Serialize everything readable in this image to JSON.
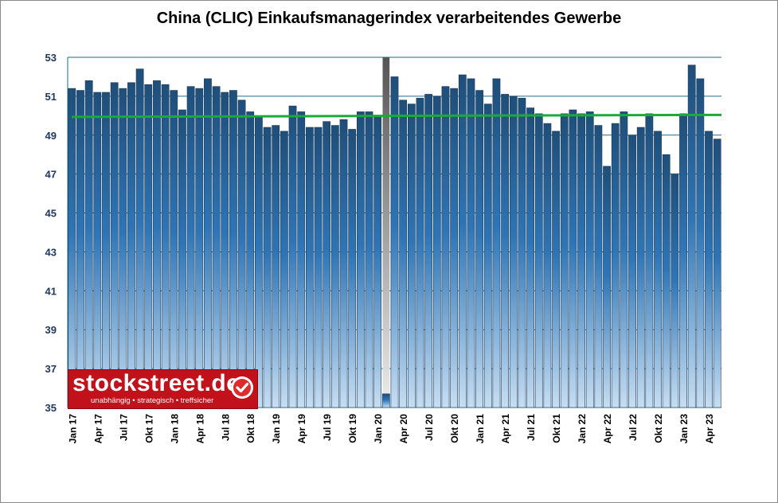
{
  "chart_data": {
    "type": "bar",
    "title": "China (CLIC) Einkaufsmanagerindex verarbeitendes Gewerbe",
    "ylim": [
      35,
      53
    ],
    "yticks": [
      35,
      37,
      39,
      41,
      43,
      45,
      47,
      49,
      51,
      53
    ],
    "grid": true,
    "categories": [
      "Jan 17",
      "Feb 17",
      "Mar 17",
      "Apr 17",
      "May 17",
      "Jun 17",
      "Jul 17",
      "Aug 17",
      "Sep 17",
      "Okt 17",
      "Nov 17",
      "Dec 17",
      "Jan 18",
      "Feb 18",
      "Mar 18",
      "Apr 18",
      "May 18",
      "Jun 18",
      "Jul 18",
      "Aug 18",
      "Sep 18",
      "Okt 18",
      "Nov 18",
      "Dec 18",
      "Jan 19",
      "Feb 19",
      "Mar 19",
      "Apr 19",
      "May 19",
      "Jun 19",
      "Jul 19",
      "Aug 19",
      "Sep 19",
      "Okt 19",
      "Nov 19",
      "Dec 19",
      "Jan 20",
      "Feb 20",
      "Mar 20",
      "Apr 20",
      "May 20",
      "Jun 20",
      "Jul 20",
      "Aug 20",
      "Sep 20",
      "Okt 20",
      "Nov 20",
      "Dec 20",
      "Jan 21",
      "Feb 21",
      "Mar 21",
      "Apr 21",
      "May 21",
      "Jun 21",
      "Jul 21",
      "Aug 21",
      "Sep 21",
      "Okt 21",
      "Nov 21",
      "Dec 21",
      "Jan 22",
      "Feb 22",
      "Mar 22",
      "Apr 22",
      "May 22",
      "Jun 22",
      "Jul 22",
      "Aug 22",
      "Sep 22",
      "Okt 22",
      "Nov 22",
      "Dec 22",
      "Jan 23",
      "Feb 23",
      "Mar 23",
      "Apr 23",
      "May 23"
    ],
    "xtick_labels": [
      "Jan 17",
      "",
      "",
      "Apr 17",
      "",
      "",
      "Jul 17",
      "",
      "",
      "Okt 17",
      "",
      "",
      "Jan 18",
      "",
      "",
      "Apr 18",
      "",
      "",
      "Jul 18",
      "",
      "",
      "Okt 18",
      "",
      "",
      "Jan 19",
      "",
      "",
      "Apr 19",
      "",
      "",
      "Jul 19",
      "",
      "",
      "Okt 19",
      "",
      "",
      "Jan 20",
      "",
      "",
      "Apr 20",
      "",
      "",
      "Jul 20",
      "",
      "",
      "Okt 20",
      "",
      "",
      "Jan 21",
      "",
      "",
      "Apr 21",
      "",
      "",
      "Jul 21",
      "",
      "",
      "Okt 21",
      "",
      "",
      "Jan 22",
      "",
      "",
      "Apr 22",
      "",
      "",
      "Jul 22",
      "",
      "",
      "Okt 22",
      "",
      "",
      "Jan 23",
      "",
      "",
      "Apr 23",
      ""
    ],
    "values": [
      51.4,
      51.3,
      51.8,
      51.2,
      51.2,
      51.7,
      51.4,
      51.7,
      52.4,
      51.6,
      51.8,
      51.6,
      51.3,
      50.3,
      51.5,
      51.4,
      51.9,
      51.5,
      51.2,
      51.3,
      50.8,
      50.2,
      50.0,
      49.4,
      49.5,
      49.2,
      50.5,
      50.2,
      49.4,
      49.4,
      49.7,
      49.5,
      49.8,
      49.3,
      50.2,
      50.2,
      50.0,
      35.7,
      52.0,
      50.8,
      50.6,
      50.9,
      51.1,
      51.0,
      51.5,
      51.4,
      52.1,
      51.9,
      51.3,
      50.6,
      51.9,
      51.1,
      51.0,
      50.9,
      50.4,
      50.1,
      49.6,
      49.2,
      50.1,
      50.3,
      50.1,
      50.2,
      49.5,
      47.4,
      49.6,
      50.2,
      49.0,
      49.4,
      50.1,
      49.2,
      48.0,
      47.0,
      50.1,
      52.6,
      51.9,
      49.2,
      48.8
    ],
    "reference_line": {
      "value": 50,
      "color": "#1aaa3a"
    },
    "bar_color_top": "#1f4e79",
    "bar_color_bottom": "#c7def2",
    "highlight_bar_color": "#c0c0c0"
  },
  "logo": {
    "name": "stockstreet.de",
    "tagline": "unabhängig • strategisch • treffsicher",
    "color": "#c1121c"
  }
}
